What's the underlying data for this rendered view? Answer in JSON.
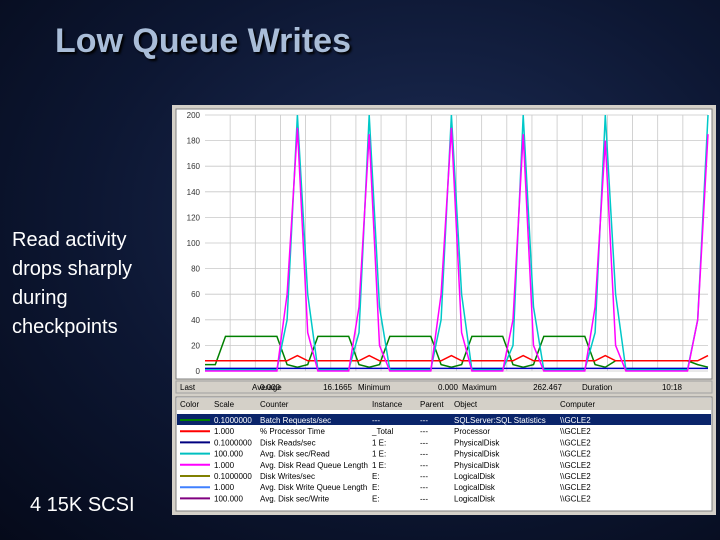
{
  "slide": {
    "title": "Low Queue Writes",
    "bullet": "Read activity drops sharply during checkpoints",
    "footer": "4 15K SCSI"
  },
  "perfmon": {
    "stats": [
      {
        "label": "Last",
        "value": "0.000"
      },
      {
        "label": "Average",
        "value": "16.1665"
      },
      {
        "label": "Minimum",
        "value": "0.000"
      },
      {
        "label": "Maximum",
        "value": "262.467"
      },
      {
        "label": "Duration",
        "value": "10:18"
      }
    ],
    "table": {
      "columns": [
        "Color",
        "Scale",
        "Counter",
        "Instance",
        "Parent",
        "Object",
        "Computer"
      ],
      "colors": [
        "#008000",
        "#ff0000",
        "#000080",
        "#00c0c0",
        "#ff00ff",
        "#808000",
        "#4080ff",
        "#800080"
      ],
      "rows": [
        [
          "0.1000000",
          "Batch Requests/sec",
          "---",
          "---",
          "SQLServer:SQL Statistics",
          "\\\\GCLE2"
        ],
        [
          "1.000",
          "% Processor Time",
          "_Total",
          "---",
          "Processor",
          "\\\\GCLE2"
        ],
        [
          "0.1000000",
          "Disk Reads/sec",
          "1 E:",
          "---",
          "PhysicalDisk",
          "\\\\GCLE2"
        ],
        [
          "100.000",
          "Avg. Disk sec/Read",
          "1 E:",
          "---",
          "PhysicalDisk",
          "\\\\GCLE2"
        ],
        [
          "1.000",
          "Avg. Disk Read Queue Length",
          "1 E:",
          "---",
          "PhysicalDisk",
          "\\\\GCLE2"
        ],
        [
          "0.1000000",
          "Disk Writes/sec",
          "E:",
          "---",
          "LogicalDisk",
          "\\\\GCLE2"
        ],
        [
          "1.000",
          "Avg. Disk Write Queue Length",
          "E:",
          "---",
          "LogicalDisk",
          "\\\\GCLE2"
        ],
        [
          "100.000",
          "Avg. Disk sec/Write",
          "E:",
          "---",
          "LogicalDisk",
          "\\\\GCLE2"
        ]
      ]
    }
  },
  "chart_data": {
    "type": "line",
    "ylim": [
      0,
      200
    ],
    "yticks": [
      0,
      20,
      40,
      60,
      80,
      100,
      120,
      140,
      160,
      180,
      200
    ],
    "grid": true,
    "series": [
      {
        "color": "#008000",
        "values": [
          5,
          5,
          27,
          27,
          27,
          27,
          27,
          27,
          5,
          3,
          5,
          27,
          27,
          27,
          27,
          5,
          3,
          5,
          27,
          27,
          27,
          27,
          27,
          5,
          3,
          5,
          27,
          27,
          27,
          27,
          5,
          3,
          5,
          27,
          27,
          27,
          27,
          27,
          5,
          3,
          8,
          8,
          8,
          8,
          8,
          8,
          8,
          8,
          5,
          3
        ]
      },
      {
        "color": "#ff0000",
        "values": [
          8,
          8,
          8,
          8,
          8,
          8,
          8,
          8,
          8,
          12,
          8,
          8,
          8,
          8,
          8,
          8,
          12,
          8,
          8,
          8,
          8,
          8,
          8,
          8,
          12,
          8,
          8,
          8,
          8,
          8,
          8,
          12,
          8,
          8,
          8,
          8,
          8,
          8,
          8,
          12,
          8,
          8,
          8,
          8,
          8,
          8,
          8,
          8,
          8,
          12
        ]
      },
      {
        "color": "#0000c0",
        "values": [
          2,
          2,
          2,
          2,
          2,
          2,
          2,
          2,
          2,
          2,
          2,
          2,
          2,
          2,
          2,
          2,
          2,
          2,
          2,
          2,
          2,
          2,
          2,
          2,
          2,
          2,
          2,
          2,
          2,
          2,
          2,
          2,
          2,
          2,
          2,
          2,
          2,
          2,
          2,
          2,
          2,
          2,
          2,
          2,
          2,
          2,
          2,
          2,
          2,
          2
        ]
      },
      {
        "color": "#00c8c8",
        "values": [
          1,
          1,
          1,
          1,
          1,
          1,
          1,
          1,
          40,
          200,
          60,
          1,
          1,
          1,
          1,
          30,
          200,
          50,
          1,
          1,
          1,
          1,
          1,
          40,
          200,
          60,
          1,
          1,
          1,
          1,
          20,
          200,
          50,
          1,
          1,
          1,
          1,
          1,
          30,
          200,
          60,
          1,
          1,
          1,
          1,
          1,
          1,
          1,
          40,
          200
        ]
      },
      {
        "color": "#ff00ff",
        "values": [
          0,
          0,
          0,
          0,
          0,
          0,
          0,
          0,
          60,
          190,
          30,
          0,
          0,
          0,
          0,
          50,
          185,
          20,
          0,
          0,
          0,
          0,
          0,
          60,
          190,
          30,
          0,
          0,
          0,
          0,
          40,
          185,
          20,
          0,
          0,
          0,
          0,
          0,
          50,
          180,
          20,
          0,
          0,
          0,
          0,
          0,
          0,
          0,
          40,
          185
        ]
      }
    ]
  }
}
